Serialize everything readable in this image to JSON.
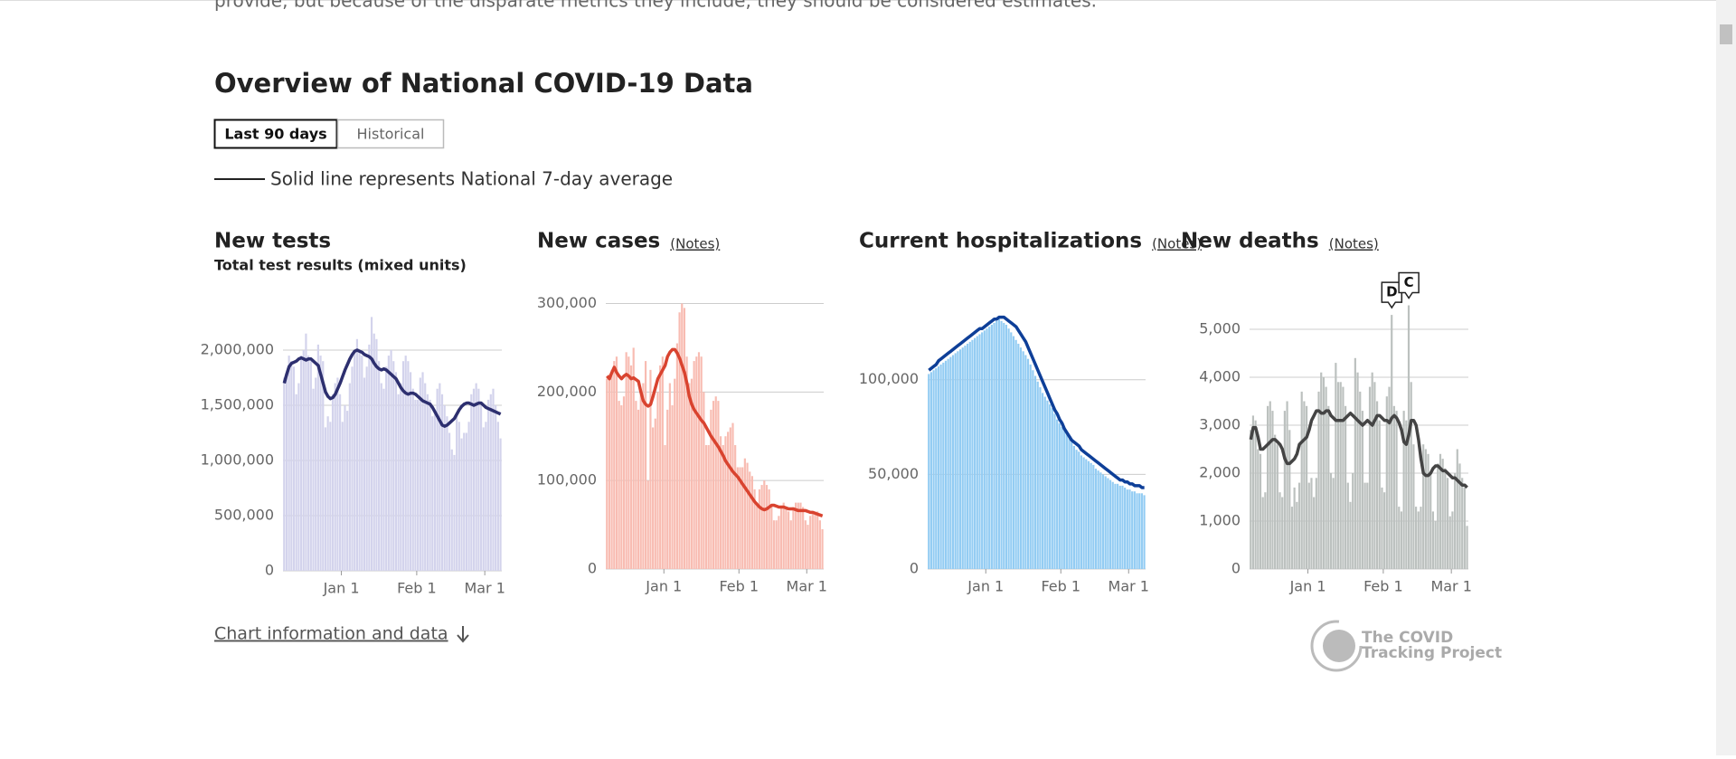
{
  "page": {
    "intro_text": "provide, but because of the disparate metrics they include, they should be considered estimates.",
    "title": "Overview of National COVID-19 Data",
    "buttons": [
      "Last 90 days",
      "Historical"
    ],
    "legend_text": "Solid line represents National 7-day average",
    "footer_link": "Chart information and data",
    "logo": [
      "The COVID",
      "Tracking Project"
    ]
  },
  "chart_data": [
    {
      "type": "bar",
      "title": "New tests",
      "subtitle": "Total test results (mixed units)",
      "xlim": [
        0,
        90
      ],
      "xticks": [
        {
          "value": 24,
          "label": "Jan 1"
        },
        {
          "value": 55,
          "label": "Feb 1"
        },
        {
          "value": 83,
          "label": "Mar 1"
        }
      ],
      "ylim": [
        0,
        2300000
      ],
      "yticks": [
        0,
        {
          "value": 500000,
          "label": "500,000"
        },
        {
          "value": 1000000,
          "label": "1,000,000"
        },
        {
          "value": 1500000,
          "label": "1,500,000"
        },
        {
          "value": 2000000,
          "label": "2,000,000"
        }
      ],
      "grid": true,
      "series": [
        {
          "type": "bar",
          "color": "#d3d3ec",
          "values": [
            1750000,
            1800000,
            1950000,
            1900000,
            1850000,
            1600000,
            1700000,
            1950000,
            2000000,
            2150000,
            1950000,
            1900000,
            1650000,
            1750000,
            2050000,
            1950000,
            1900000,
            1300000,
            1400000,
            1350000,
            1600000,
            1700000,
            1750000,
            1600000,
            1350000,
            1500000,
            1450000,
            1700000,
            1850000,
            2000000,
            2100000,
            2000000,
            1950000,
            1750000,
            1850000,
            2050000,
            2300000,
            2150000,
            2100000,
            1900000,
            1700000,
            1650000,
            1850000,
            1950000,
            2000000,
            1900000,
            1800000,
            1600000,
            1700000,
            1900000,
            1950000,
            1900000,
            1800000,
            1650000,
            1550000,
            1550000,
            1750000,
            1800000,
            1700000,
            1600000,
            1550000,
            1400000,
            1450000,
            1650000,
            1700000,
            1600000,
            1500000,
            1400000,
            1250000,
            1100000,
            1050000,
            1400000,
            1350000,
            1200000,
            1250000,
            1250000,
            1350000,
            1600000,
            1650000,
            1700000,
            1650000,
            1500000,
            1300000,
            1350000,
            1550000,
            1600000,
            1650000,
            1500000,
            1350000,
            1200000
          ]
        },
        {
          "type": "line",
          "color": "#2d2f6f",
          "values": [
            1700000,
            1780000,
            1850000,
            1880000,
            1890000,
            1900000,
            1920000,
            1930000,
            1920000,
            1910000,
            1920000,
            1920000,
            1900000,
            1880000,
            1860000,
            1780000,
            1700000,
            1620000,
            1580000,
            1560000,
            1570000,
            1600000,
            1650000,
            1700000,
            1760000,
            1820000,
            1870000,
            1920000,
            1960000,
            1990000,
            2000000,
            1990000,
            1980000,
            1960000,
            1950000,
            1940000,
            1920000,
            1880000,
            1850000,
            1830000,
            1820000,
            1830000,
            1820000,
            1800000,
            1780000,
            1760000,
            1740000,
            1700000,
            1660000,
            1630000,
            1610000,
            1600000,
            1610000,
            1610000,
            1600000,
            1580000,
            1560000,
            1540000,
            1530000,
            1520000,
            1510000,
            1480000,
            1440000,
            1400000,
            1360000,
            1320000,
            1310000,
            1320000,
            1340000,
            1360000,
            1380000,
            1420000,
            1460000,
            1490000,
            1510000,
            1520000,
            1520000,
            1510000,
            1500000,
            1510000,
            1520000,
            1520000,
            1500000,
            1480000,
            1470000,
            1460000,
            1450000,
            1440000,
            1430000,
            1420000
          ]
        }
      ]
    },
    {
      "type": "bar",
      "title": "New cases",
      "notes": "(Notes)",
      "xlim": [
        0,
        90
      ],
      "xticks": [
        {
          "value": 24,
          "label": "Jan 1"
        },
        {
          "value": 55,
          "label": "Feb 1"
        },
        {
          "value": 83,
          "label": "Mar 1"
        }
      ],
      "ylim": [
        0,
        300000
      ],
      "yticks": [
        0,
        {
          "value": 100000,
          "label": "100,000"
        },
        {
          "value": 200000,
          "label": "200,000"
        },
        {
          "value": 300000,
          "label": "300,000"
        }
      ],
      "grid": true,
      "series": [
        {
          "type": "bar",
          "color": "#f8bcb2",
          "values": [
            215000,
            220000,
            225000,
            235000,
            240000,
            190000,
            185000,
            195000,
            245000,
            240000,
            230000,
            250000,
            190000,
            180000,
            200000,
            210000,
            235000,
            100000,
            225000,
            160000,
            170000,
            200000,
            230000,
            240000,
            140000,
            180000,
            210000,
            185000,
            215000,
            255000,
            290000,
            300000,
            295000,
            240000,
            210000,
            215000,
            235000,
            240000,
            245000,
            240000,
            200000,
            140000,
            140000,
            180000,
            190000,
            195000,
            190000,
            150000,
            140000,
            150000,
            155000,
            160000,
            165000,
            140000,
            115000,
            115000,
            115000,
            125000,
            120000,
            110000,
            105000,
            90000,
            75000,
            90000,
            95000,
            100000,
            95000,
            90000,
            70000,
            55000,
            55000,
            60000,
            70000,
            75000,
            70000,
            65000,
            55000,
            70000,
            75000,
            75000,
            75000,
            70000,
            55000,
            50000,
            60000,
            65000,
            65000,
            65000,
            55000,
            45000
          ]
        },
        {
          "type": "line",
          "color": "#d9432f",
          "values": [
            218000,
            215000,
            222000,
            228000,
            222000,
            218000,
            215000,
            218000,
            220000,
            218000,
            215000,
            216000,
            214000,
            212000,
            200000,
            190000,
            186000,
            184000,
            186000,
            195000,
            205000,
            215000,
            220000,
            225000,
            230000,
            240000,
            245000,
            248000,
            248000,
            244000,
            238000,
            230000,
            222000,
            210000,
            195000,
            186000,
            180000,
            176000,
            172000,
            168000,
            165000,
            160000,
            155000,
            150000,
            146000,
            142000,
            138000,
            133000,
            128000,
            122000,
            118000,
            114000,
            110000,
            107000,
            104000,
            100000,
            96000,
            92000,
            88000,
            84000,
            80000,
            76000,
            73000,
            70000,
            68000,
            67000,
            68000,
            70000,
            72000,
            72000,
            71000,
            70000,
            70000,
            70000,
            69000,
            68000,
            68000,
            68000,
            67000,
            66000,
            66000,
            66000,
            66000,
            65000,
            64000,
            64000,
            63000,
            62000,
            61000,
            60000
          ]
        }
      ]
    },
    {
      "type": "bar",
      "title": "Current hospitalizations",
      "notes": "(Notes)",
      "xlim": [
        0,
        90
      ],
      "xticks": [
        {
          "value": 24,
          "label": "Jan 1"
        },
        {
          "value": 55,
          "label": "Feb 1"
        },
        {
          "value": 83,
          "label": "Mar 1"
        }
      ],
      "ylim": [
        0,
        140000
      ],
      "yticks": [
        0,
        {
          "value": 50000,
          "label": "50,000"
        },
        {
          "value": 100000,
          "label": "100,000"
        }
      ],
      "grid": true,
      "series": [
        {
          "type": "bar",
          "color": "#93ccf3",
          "values": [
            103000,
            104000,
            105000,
            106000,
            107000,
            108000,
            109000,
            110000,
            111000,
            112000,
            113000,
            114000,
            115000,
            116000,
            117000,
            118000,
            119000,
            120000,
            121000,
            122000,
            123000,
            124000,
            125000,
            126000,
            127000,
            128000,
            129000,
            130000,
            131000,
            132000,
            131000,
            130000,
            129000,
            127000,
            125000,
            123000,
            121000,
            119000,
            117000,
            115000,
            113000,
            111000,
            108000,
            105000,
            102000,
            99000,
            96000,
            93000,
            91000,
            89000,
            87000,
            85000,
            82000,
            79000,
            77000,
            75000,
            73000,
            71000,
            69000,
            67000,
            65000,
            63000,
            62000,
            60000,
            59000,
            58000,
            57000,
            56000,
            55000,
            53000,
            52000,
            51000,
            50000,
            49000,
            48000,
            47000,
            46000,
            45000,
            45000,
            44000,
            44000,
            43000,
            42000,
            42000,
            41000,
            41000,
            40000,
            40000,
            40000,
            39000
          ]
        },
        {
          "type": "line",
          "color": "#0e3f98",
          "values": [
            105000,
            106000,
            107000,
            108000,
            110000,
            111000,
            112000,
            113000,
            114000,
            115000,
            116000,
            117000,
            118000,
            119000,
            120000,
            121000,
            122000,
            123000,
            124000,
            125000,
            126000,
            127000,
            127000,
            128000,
            129000,
            130000,
            131000,
            132000,
            132000,
            133000,
            133000,
            133000,
            132000,
            131000,
            130000,
            129000,
            128000,
            126000,
            124000,
            122000,
            120000,
            117000,
            114000,
            111000,
            108000,
            105000,
            102000,
            99000,
            96000,
            93000,
            90000,
            87000,
            84000,
            82000,
            79000,
            77000,
            74000,
            72000,
            70000,
            68000,
            67000,
            66000,
            65000,
            63000,
            62000,
            61000,
            60000,
            59000,
            58000,
            57000,
            56000,
            55000,
            54000,
            53000,
            52000,
            51000,
            50000,
            49000,
            48000,
            47000,
            47000,
            46000,
            46000,
            45000,
            45000,
            44000,
            44000,
            44000,
            43000,
            43000
          ]
        }
      ]
    },
    {
      "type": "bar",
      "title": "New deaths",
      "notes": "(Notes)",
      "xlim": [
        0,
        90
      ],
      "xticks": [
        {
          "value": 24,
          "label": "Jan 1"
        },
        {
          "value": 55,
          "label": "Feb 1"
        },
        {
          "value": 83,
          "label": "Mar 1"
        }
      ],
      "ylim": [
        0,
        5500
      ],
      "yticks": [
        0,
        {
          "value": 1000,
          "label": "1,000"
        },
        {
          "value": 2000,
          "label": "2,000"
        },
        {
          "value": 3000,
          "label": "3,000"
        },
        {
          "value": 4000,
          "label": "4,000"
        },
        {
          "value": 5000,
          "label": "5,000"
        }
      ],
      "grid": true,
      "annotations": [
        {
          "text": "D",
          "x": 58
        },
        {
          "text": "C",
          "x": 65
        }
      ],
      "series": [
        {
          "type": "bar",
          "color": "#bcc1bf",
          "values": [
            2900,
            3200,
            3100,
            2500,
            2400,
            1500,
            1600,
            3400,
            3500,
            3300,
            2800,
            2600,
            1600,
            1500,
            3300,
            3500,
            2900,
            1300,
            1700,
            1400,
            1800,
            3700,
            3500,
            3400,
            1800,
            1900,
            1500,
            1900,
            3700,
            4100,
            4000,
            3800,
            3400,
            2000,
            1900,
            4300,
            3900,
            3900,
            3800,
            3400,
            1800,
            1400,
            2000,
            4400,
            4100,
            3700,
            3300,
            1800,
            1800,
            3800,
            4100,
            3900,
            3500,
            3100,
            1700,
            1600,
            3600,
            3800,
            5300,
            3400,
            3300,
            1300,
            1200,
            3300,
            3100,
            5500,
            3900,
            2600,
            1300,
            1200,
            1300,
            2600,
            2500,
            2400,
            2000,
            1200,
            1000,
            2200,
            2400,
            2300,
            2100,
            1900,
            1100,
            1200,
            2000,
            2500,
            2200,
            1900,
            1700,
            900
          ]
        },
        {
          "type": "line",
          "color": "#444444",
          "values": [
            2700,
            2950,
            2950,
            2750,
            2500,
            2500,
            2550,
            2600,
            2650,
            2700,
            2700,
            2650,
            2600,
            2500,
            2300,
            2200,
            2200,
            2250,
            2300,
            2400,
            2600,
            2650,
            2700,
            2750,
            2900,
            3100,
            3200,
            3300,
            3300,
            3250,
            3250,
            3300,
            3300,
            3200,
            3150,
            3100,
            3100,
            3100,
            3100,
            3150,
            3200,
            3250,
            3200,
            3150,
            3100,
            3050,
            3000,
            3050,
            3100,
            3050,
            3000,
            3100,
            3200,
            3200,
            3150,
            3100,
            3100,
            3050,
            3150,
            3200,
            3150,
            3050,
            2900,
            2650,
            2600,
            2800,
            3100,
            3100,
            3000,
            2700,
            2300,
            2000,
            1950,
            1950,
            2000,
            2100,
            2150,
            2150,
            2100,
            2050,
            2050,
            2000,
            1950,
            1900,
            1900,
            1850,
            1800,
            1750,
            1750,
            1700
          ]
        }
      ]
    }
  ]
}
